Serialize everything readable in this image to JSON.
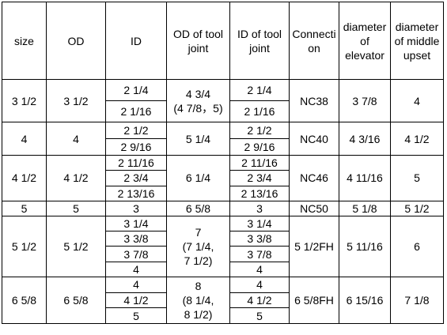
{
  "table": {
    "header": [
      "size",
      "OD",
      "ID",
      "OD of tool joint",
      "ID of tool joint",
      "Connection",
      "diameter of elevator",
      "diameter of middle upset"
    ],
    "groups": [
      {
        "size": "3 1/2",
        "od": "3 1/2",
        "ids": [
          "2 1/4",
          "2 1/16"
        ],
        "od_tool_joint": "4 3/4\n(4 7/8，5)",
        "id_tool_joint": [
          "2 1/4",
          "2 1/16"
        ],
        "connection": "NC38",
        "elevator": "3 7/8",
        "middle_upset": "4"
      },
      {
        "size": "4",
        "od": "4",
        "ids": [
          "2 1/2",
          "2 9/16"
        ],
        "od_tool_joint": "5 1/4",
        "id_tool_joint": [
          "2 1/2",
          "2 9/16"
        ],
        "connection": "NC40",
        "elevator": "4 3/16",
        "middle_upset": "4 1/2"
      },
      {
        "size": "4 1/2",
        "od": "4 1/2",
        "ids": [
          "2 11/16",
          "2 3/4",
          "2 13/16"
        ],
        "od_tool_joint": "6 1/4",
        "id_tool_joint": [
          "2 11/16",
          "2 3/4",
          "2 13/16"
        ],
        "connection": "NC46",
        "elevator": "4 11/16",
        "middle_upset": "5"
      },
      {
        "size": "5",
        "od": "5",
        "ids": [
          "3"
        ],
        "od_tool_joint": "6 5/8",
        "id_tool_joint": [
          "3"
        ],
        "connection": "NC50",
        "elevator": "5 1/8",
        "middle_upset": "5 1/2"
      },
      {
        "size": "5 1/2",
        "od": "5 1/2",
        "ids": [
          "3 1/4",
          "3 3/8",
          "3 7/8",
          "4"
        ],
        "od_tool_joint": "7\n(7 1/4,\n7 1/2)",
        "id_tool_joint": [
          "3 1/4",
          "3 3/8",
          "3 7/8",
          "4"
        ],
        "connection": "5 1/2FH",
        "elevator": "5 11/16",
        "middle_upset": "6"
      },
      {
        "size": "6 5/8",
        "od": "6 5/8",
        "ids": [
          "4",
          "4 1/2",
          "5"
        ],
        "od_tool_joint": "8\n(8 1/4,\n8 1/2)",
        "id_tool_joint": [
          "4",
          "4 1/2",
          "5"
        ],
        "connection": "6 5/8FH",
        "elevator": "6 15/16",
        "middle_upset": "7 1/8"
      }
    ]
  }
}
